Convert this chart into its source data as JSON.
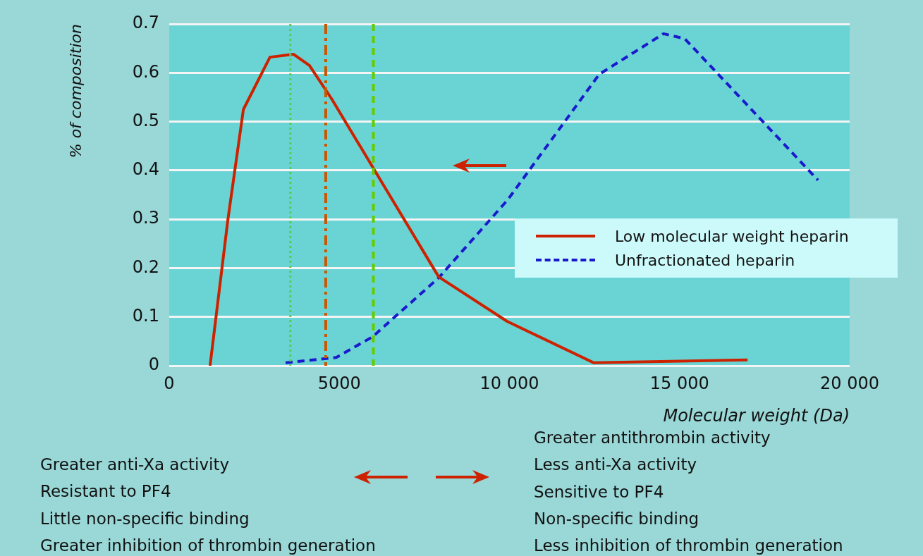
{
  "chart_data": {
    "type": "line",
    "xlabel": "Molecular weight (Da)",
    "ylabel": "% of composition",
    "xlim": [
      0,
      20000
    ],
    "xticks": [
      0,
      5000,
      {
        "value": 10000,
        "label": "10 000"
      },
      {
        "value": 15000,
        "label": "15 000"
      },
      {
        "value": 20000,
        "label": "20 000"
      }
    ],
    "ylim": [
      0,
      0.7
    ],
    "yticks": [
      0,
      0.1,
      0.2,
      0.3,
      0.4,
      0.5,
      0.6,
      0.7
    ],
    "grid": "y",
    "legend": "right",
    "marker": "none",
    "series": [
      {
        "name": "Low molecular weight heparin",
        "color": "#cc2200",
        "line_style": "solid",
        "x": [
          1200,
          1720,
          2180,
          2960,
          3650,
          4120,
          4770,
          7920,
          9930,
          12480,
          17000
        ],
        "values": [
          0,
          0.297,
          0.525,
          0.632,
          0.638,
          0.615,
          0.547,
          0.182,
          0.091,
          0.006,
          0.012
        ]
      },
      {
        "name": "Unfractionated heparin",
        "color": "#1a1acc",
        "line_style": "dashed",
        "x": [
          3420,
          4910,
          5970,
          7920,
          9950,
          12640,
          14530,
          15150,
          19070
        ],
        "values": [
          0.006,
          0.017,
          0.059,
          0.18,
          0.34,
          0.597,
          0.68,
          0.67,
          0.38
        ]
      }
    ],
    "ref_lines": [
      {
        "axis": "x",
        "value": 3560,
        "color": "#55cc55",
        "line_style": "dotted"
      },
      {
        "axis": "x",
        "value": 4600,
        "color": "#cc5500",
        "line_style": "dashdot"
      },
      {
        "axis": "x",
        "value": 6000,
        "color": "#66cc00",
        "line_style": "dashed"
      }
    ],
    "annotations": [
      "Greater anti-Xa activity\nResistant to PF4\nLittle non-specific binding\nGreater inhibition of thrombin generation",
      "Greater antithrombin activity\nLess anti-Xa activity\nSensitive to PF4\nNon-specific binding\nLess inhibition of thrombin generation"
    ]
  }
}
